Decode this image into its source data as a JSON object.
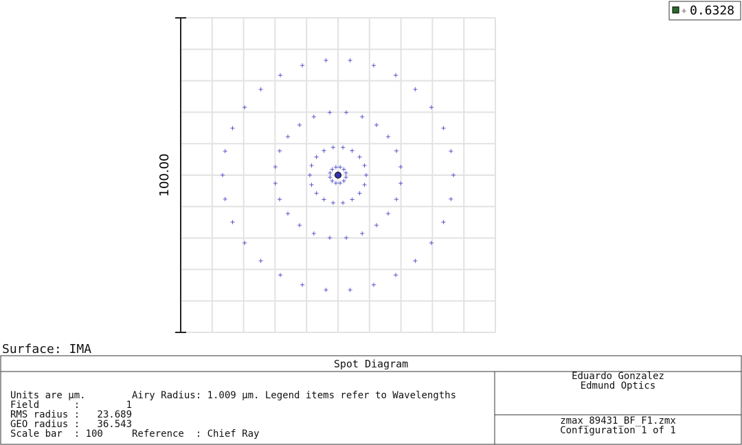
{
  "plot": {
    "scale_bar_label": "100.00",
    "legend": {
      "wavelength": "0.6328"
    }
  },
  "surface_label": "Surface: IMA",
  "info": {
    "title": "Spot Diagram",
    "lines": [
      "Units are µm.        Airy Radius: 1.009 µm. Legend items refer to Wavelengths",
      "Field      :        1",
      "RMS radius :   23.689",
      "GEO radius :   36.543",
      "Scale bar  : 100     Reference  : Chief Ray"
    ],
    "author": [
      "Eduardo Gonzalez",
      "Edmund Optics"
    ],
    "file": [
      "zmax_89431_BF_F1.zmx",
      "Configuration 1 of 1"
    ]
  }
}
